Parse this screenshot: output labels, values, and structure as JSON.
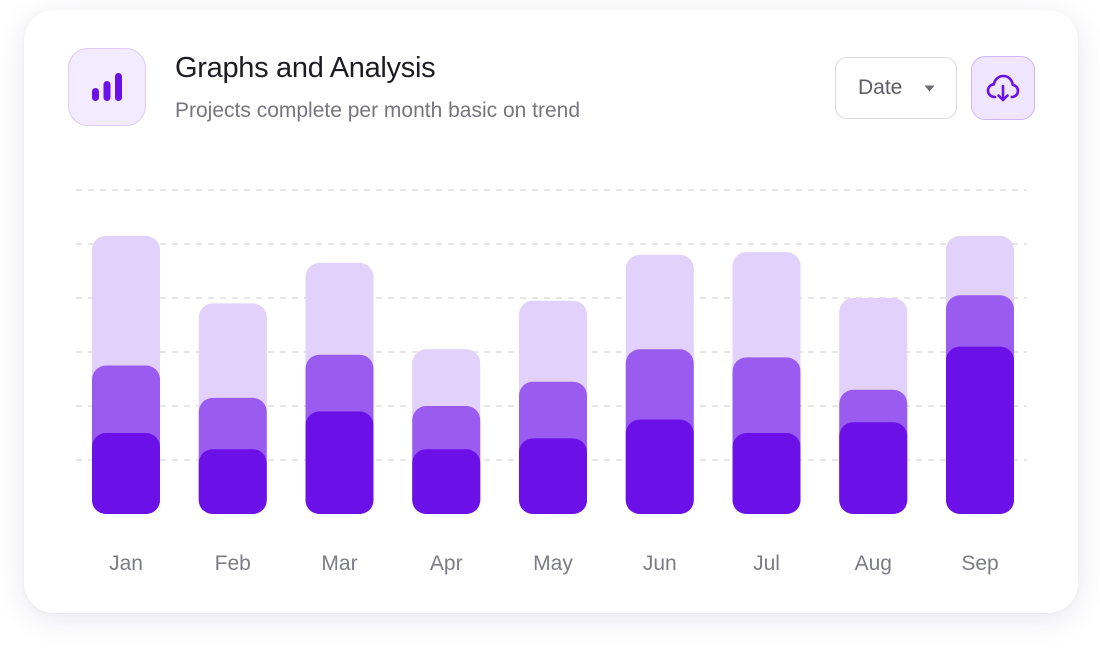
{
  "header": {
    "title": "Graphs and Analysis",
    "subtitle": "Projects complete per month basic on trend",
    "chart_icon": "bar-chart-icon"
  },
  "controls": {
    "date_select_label": "Date",
    "caret_icon": "caret-down-icon",
    "download_icon": "cloud-download-icon"
  },
  "colors": {
    "accent": "#6c10e8",
    "series_dark": "#6c10e8",
    "series_mid": "#9a5cf0",
    "series_light": "#e1d1fb",
    "grid": "#dedee2"
  },
  "chart_data": {
    "type": "bar",
    "stacked": true,
    "title": "Graphs and Analysis",
    "xlabel": "",
    "ylabel": "",
    "ylim": [
      0,
      6
    ],
    "grid": true,
    "legend": "none",
    "categories": [
      "Jan",
      "Feb",
      "Mar",
      "Apr",
      "May",
      "Jun",
      "Jul",
      "Aug",
      "Sep"
    ],
    "series": [
      {
        "values": [
          1.5,
          1.2,
          1.9,
          1.2,
          1.4,
          1.75,
          1.5,
          1.7,
          3.1
        ]
      },
      {
        "values": [
          1.25,
          0.95,
          1.05,
          0.8,
          1.05,
          1.3,
          1.4,
          0.6,
          0.95
        ]
      },
      {
        "values": [
          2.4,
          1.75,
          1.7,
          1.05,
          1.5,
          1.75,
          1.95,
          1.7,
          1.1
        ]
      }
    ]
  }
}
